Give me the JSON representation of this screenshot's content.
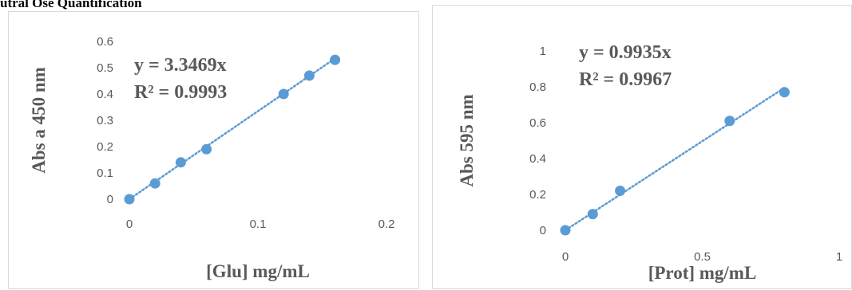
{
  "header": {
    "text": "utral Ose Quantification"
  },
  "chart_data": [
    {
      "type": "scatter",
      "series": [
        {
          "x": [
            0,
            0.02,
            0.04,
            0.06,
            0.12,
            0.14,
            0.16
          ],
          "y": [
            0,
            0.06,
            0.14,
            0.19,
            0.4,
            0.47,
            0.53
          ]
        }
      ],
      "trendline": {
        "style": "dotted",
        "slope": 3.3469
      },
      "equation": "y = 3.3469x",
      "r_squared": "R² = 0.9993",
      "xlabel": "[Glu] mg/mL",
      "ylabel": "Abs a 450 nm",
      "xlim": [
        0,
        0.2
      ],
      "ylim": [
        0,
        0.6
      ],
      "xticks": [
        "0",
        "0.1",
        "0.2"
      ],
      "yticks": [
        "0",
        "0.1",
        "0.2",
        "0.3",
        "0.4",
        "0.5",
        "0.6"
      ],
      "color": "#5b9bd5",
      "grid": false
    },
    {
      "type": "scatter",
      "series": [
        {
          "x": [
            0,
            0.1,
            0.2,
            0.6,
            0.8
          ],
          "y": [
            0,
            0.09,
            0.22,
            0.61,
            0.77
          ]
        }
      ],
      "trendline": {
        "style": "dotted",
        "slope": 0.9935
      },
      "equation": "y = 0.9935x",
      "r_squared": "R² = 0.9967",
      "xlabel": "[Prot] mg/mL",
      "ylabel": "Abs 595 nm",
      "xlim": [
        0,
        1
      ],
      "ylim": [
        0,
        1
      ],
      "xticks": [
        "0",
        "0.5",
        "1"
      ],
      "yticks": [
        "0",
        "0.2",
        "0.4",
        "0.6",
        "0.8",
        "1"
      ],
      "color": "#5b9bd5",
      "grid": false
    }
  ]
}
